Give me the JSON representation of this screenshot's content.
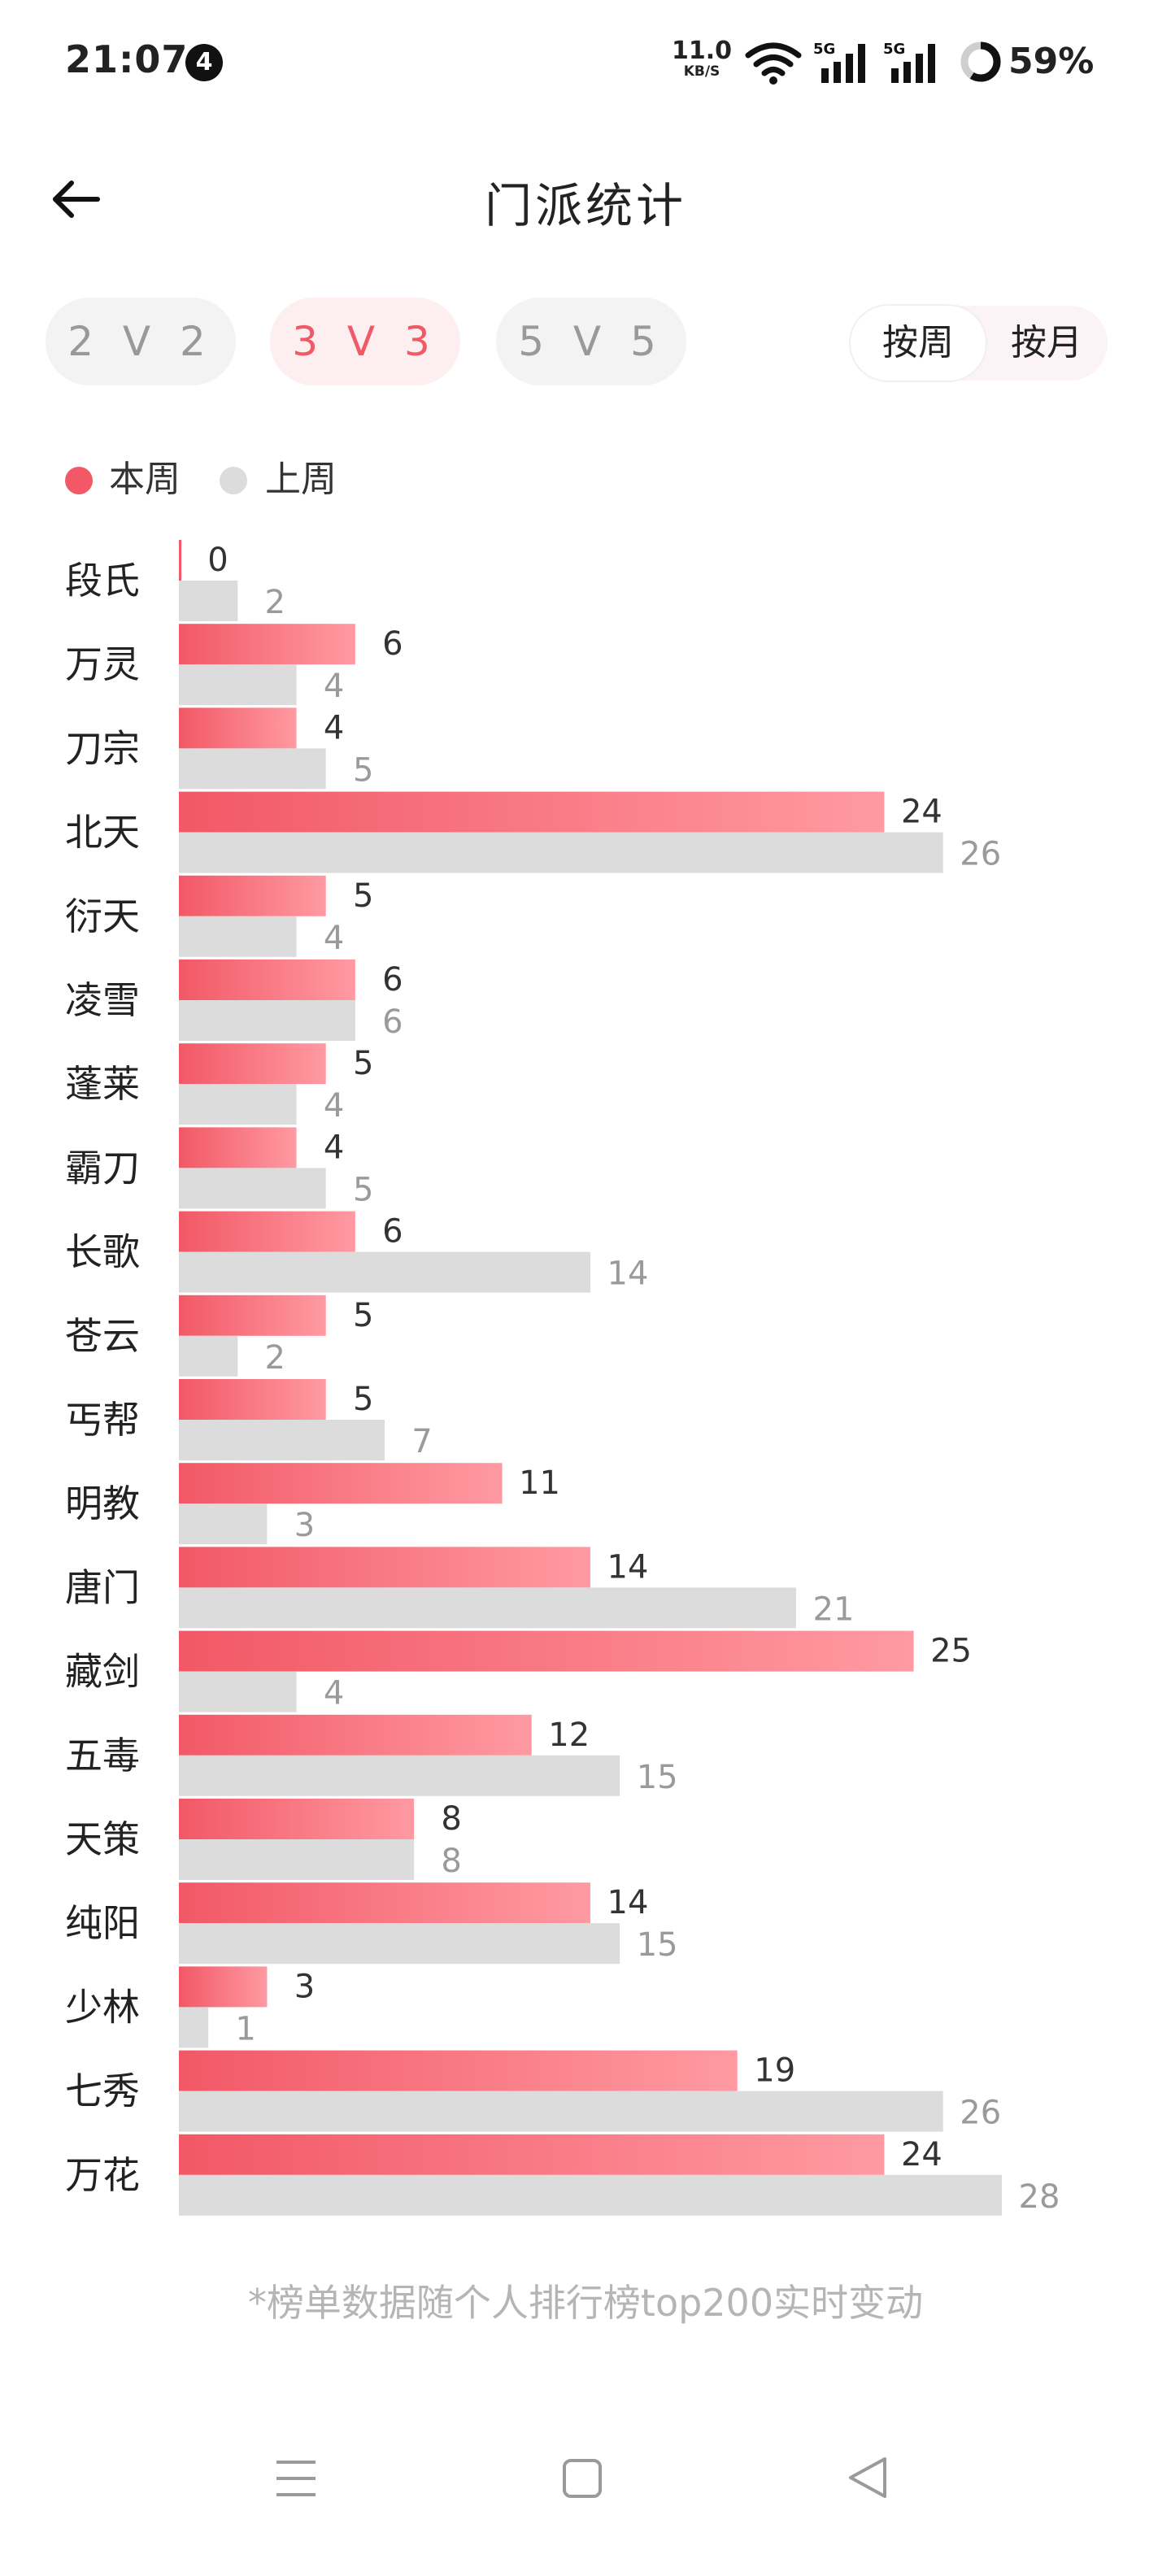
{
  "status_bar": {
    "time": "21:07",
    "notification_count": "4",
    "net_speed_value": "11.0",
    "net_speed_unit": "KB/S",
    "signal_1_label": "5G",
    "signal_2_label": "5G",
    "battery": "59%",
    "battery_level": 0.59
  },
  "header": {
    "title": "门派统计"
  },
  "mode_tabs": [
    {
      "label": "2 V 2",
      "active": false
    },
    {
      "label": "3 V 3",
      "active": true
    },
    {
      "label": "5 V 5",
      "active": false
    }
  ],
  "period_toggle": {
    "week": "按周",
    "month": "按月",
    "selected": "week"
  },
  "legend": {
    "this_week": "本周",
    "last_week": "上周"
  },
  "colors": {
    "this_week": "#f25866",
    "this_week_light": "#ff9aa2",
    "last_week": "#dddcdd",
    "active_tab_text": "#ef5a66",
    "active_tab_bg": "#fdeef0"
  },
  "chart_data": {
    "type": "bar",
    "orientation": "horizontal",
    "categories": [
      "段氏",
      "万灵",
      "刀宗",
      "北天",
      "衍天",
      "凌雪",
      "蓬莱",
      "霸刀",
      "长歌",
      "苍云",
      "丐帮",
      "明教",
      "唐门",
      "藏剑",
      "五毒",
      "天策",
      "纯阳",
      "少林",
      "七秀",
      "万花"
    ],
    "series": [
      {
        "name": "本周",
        "values": [
          0,
          6,
          4,
          24,
          5,
          6,
          5,
          4,
          6,
          5,
          5,
          11,
          14,
          25,
          12,
          8,
          14,
          3,
          19,
          24
        ]
      },
      {
        "name": "上周",
        "values": [
          2,
          4,
          5,
          26,
          4,
          6,
          4,
          5,
          14,
          2,
          7,
          3,
          21,
          4,
          15,
          8,
          15,
          1,
          26,
          28
        ]
      }
    ],
    "xlim": [
      0,
      28
    ],
    "grid": false,
    "legend_position": "top-left",
    "data_labels": true
  },
  "footnote": "*榜单数据随个人排行榜top200实时变动",
  "nav_bar": {
    "menu_icon": "menu-icon",
    "home_icon": "home-icon",
    "back_icon": "back-triangle-icon"
  }
}
